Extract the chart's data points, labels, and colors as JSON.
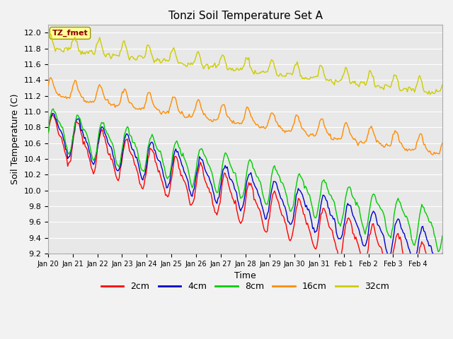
{
  "title": "Tonzi Soil Temperature Set A",
  "xlabel": "Time",
  "ylabel": "Soil Temperature (C)",
  "annotation": "TZ_fmet",
  "annotation_color": "#8B0000",
  "annotation_bg": "#FFFF99",
  "ylim": [
    9.2,
    12.1
  ],
  "colors": {
    "2cm": "#FF0000",
    "4cm": "#0000CC",
    "8cm": "#00CC00",
    "16cm": "#FF8C00",
    "32cm": "#CCCC00"
  },
  "linewidth": 1.0,
  "bg_color": "#E8E8E8",
  "grid_color": "#FFFFFF",
  "tick_labels": [
    "Jan 20",
    "Jan 21",
    "Jan 22",
    "Jan 23",
    "Jan 24",
    "Jan 25",
    "Jan 26",
    "Jan 27",
    "Jan 28",
    "Jan 29",
    "Jan 30",
    "Jan 31",
    "Feb 1",
    "Feb 2",
    "Feb 3",
    "Feb 4"
  ]
}
